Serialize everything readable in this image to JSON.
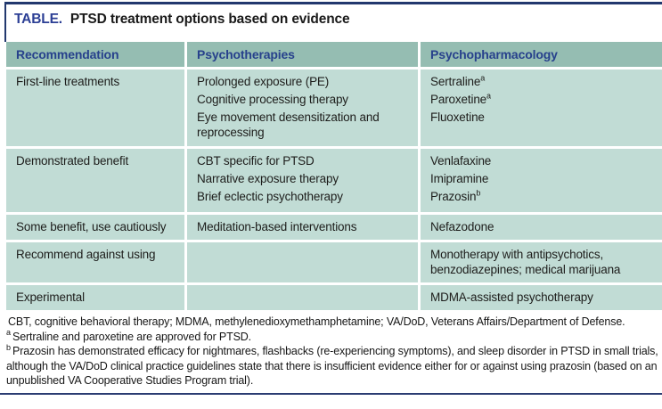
{
  "title": {
    "label": "TABLE.",
    "text": "PTSD treatment options based on evidence"
  },
  "colors": {
    "rule_navy": "#22386e",
    "title_blue": "#2c3f95",
    "header_text_blue": "#27418c",
    "header_bg": "#95bdb2",
    "row_bg": "#c1dcd5",
    "body_text": "#1d1d1b"
  },
  "table": {
    "columns": [
      "Recommendation",
      "Psychotherapies",
      "Psychopharmacology"
    ],
    "rows": [
      {
        "recommendation": "First-line treatments",
        "psychotherapies": [
          {
            "text": "Prolonged exposure (PE)",
            "sup": ""
          },
          {
            "text": "Cognitive processing therapy",
            "sup": ""
          },
          {
            "text": "Eye movement desensitization and reprocessing",
            "sup": ""
          }
        ],
        "psychopharmacology": [
          {
            "text": "Sertraline",
            "sup": "a"
          },
          {
            "text": "Paroxetine",
            "sup": "a"
          },
          {
            "text": "Fluoxetine",
            "sup": ""
          }
        ]
      },
      {
        "recommendation": "Demonstrated benefit",
        "psychotherapies": [
          {
            "text": "CBT specific for PTSD",
            "sup": ""
          },
          {
            "text": "Narrative exposure therapy",
            "sup": ""
          },
          {
            "text": "Brief eclectic psychotherapy",
            "sup": ""
          }
        ],
        "psychopharmacology": [
          {
            "text": "Venlafaxine",
            "sup": ""
          },
          {
            "text": "Imipramine",
            "sup": ""
          },
          {
            "text": "Prazosin",
            "sup": "b"
          }
        ]
      },
      {
        "recommendation": "Some benefit, use cautiously",
        "psychotherapies": [
          {
            "text": "Meditation-based interventions",
            "sup": ""
          }
        ],
        "psychopharmacology": [
          {
            "text": "Nefazodone",
            "sup": ""
          }
        ]
      },
      {
        "recommendation": "Recommend against using",
        "psychotherapies": [],
        "psychopharmacology": [
          {
            "text": "Monotherapy with antipsychotics, benzodiazepines; medical marijuana",
            "sup": ""
          }
        ]
      },
      {
        "recommendation": "Experimental",
        "psychotherapies": [],
        "psychopharmacology": [
          {
            "text": "MDMA-assisted psychotherapy",
            "sup": ""
          }
        ]
      }
    ]
  },
  "footnotes": [
    {
      "marker": "",
      "text": "CBT, cognitive behavioral therapy; MDMA, methylenedioxymethamphetamine; VA/DoD, Veterans Affairs/Department of Defense."
    },
    {
      "marker": "a",
      "text": "Sertraline and paroxetine are approved for PTSD."
    },
    {
      "marker": "b",
      "text": "Prazosin has demonstrated efficacy for nightmares, flashbacks (re-experiencing symptoms), and sleep disorder in PTSD in small trials, although the VA/DoD clinical practice guidelines state that there is insufficient evidence either for or against using prazosin (based on an unpublished VA Cooperative Studies Program trial)."
    }
  ]
}
